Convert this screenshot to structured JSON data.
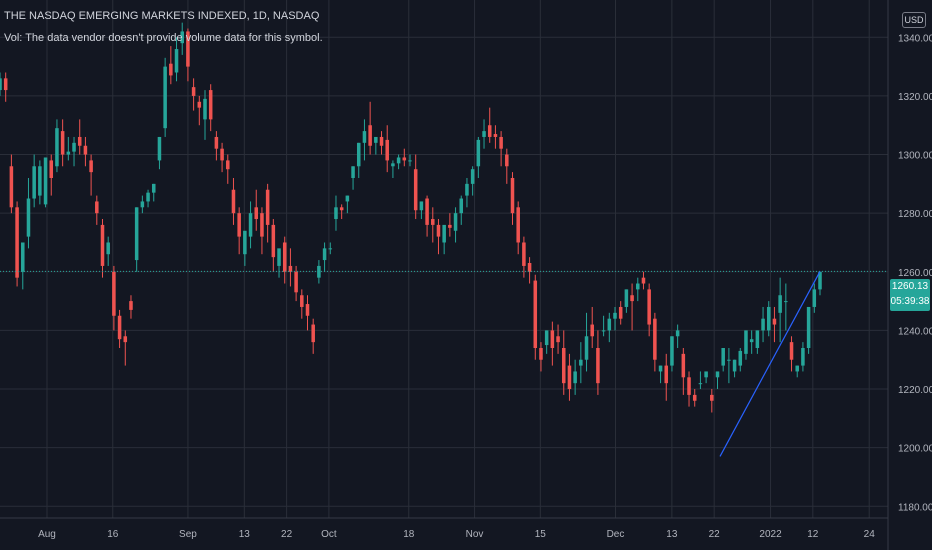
{
  "header": {
    "title": "THE NASDAQ EMERGING MARKETS INDEXED, 1D, NASDAQ",
    "volume_note": "Vol: The data vendor doesn't provide volume data for this symbol."
  },
  "currency_button": "USD",
  "last_price": {
    "value": "1260.13",
    "countdown": "05:39:38"
  },
  "colors": {
    "background": "#131722",
    "up": "#26a69a",
    "down": "#ef5350",
    "grid": "#2a2e39",
    "text": "#b2b5be"
  },
  "chart_data": {
    "type": "candlestick",
    "y_ticks": [
      "1180.00",
      "1200.00",
      "1220.00",
      "1240.00",
      "1260.00",
      "1280.00",
      "1300.00",
      "1320.00",
      "1340.00"
    ],
    "x_ticks": [
      {
        "label": "Aug",
        "date": "2021-08-02"
      },
      {
        "label": "16",
        "date": "2021-08-16"
      },
      {
        "label": "Sep",
        "date": "2021-09-01"
      },
      {
        "label": "13",
        "date": "2021-09-13"
      },
      {
        "label": "22",
        "date": "2021-09-22"
      },
      {
        "label": "Oct",
        "date": "2021-10-01"
      },
      {
        "label": "18",
        "date": "2021-10-18"
      },
      {
        "label": "Nov",
        "date": "2021-11-01"
      },
      {
        "label": "15",
        "date": "2021-11-15"
      },
      {
        "label": "Dec",
        "date": "2021-12-01"
      },
      {
        "label": "13",
        "date": "2021-12-13"
      },
      {
        "label": "22",
        "date": "2021-12-22"
      },
      {
        "label": "2022",
        "date": "2022-01-03"
      },
      {
        "label": "12",
        "date": "2022-01-12"
      },
      {
        "label": "24",
        "date": "2022-01-24"
      }
    ],
    "ylim": [
      1176,
      1350
    ],
    "last_price": 1260.13,
    "candles": [
      [
        1322,
        1328,
        1326,
        1320
      ],
      [
        1326,
        1328,
        1322,
        1318
      ],
      [
        1296,
        1300,
        1282,
        1280
      ],
      [
        1282,
        1284,
        1258,
        1255
      ],
      [
        1260,
        1262,
        1270,
        1254
      ],
      [
        1272,
        1292,
        1285,
        1268
      ],
      [
        1285,
        1300,
        1296,
        1282
      ],
      [
        1286,
        1298,
        1296,
        1283
      ],
      [
        1283,
        1286,
        1299,
        1282
      ],
      [
        1298,
        1300,
        1292,
        1286
      ],
      [
        1296,
        1312,
        1309,
        1294
      ],
      [
        1308,
        1312,
        1300,
        1296
      ],
      [
        1300,
        1306,
        1301,
        1298
      ],
      [
        1301,
        1306,
        1304,
        1296
      ],
      [
        1306,
        1312,
        1303,
        1300
      ],
      [
        1303,
        1306,
        1300,
        1296
      ],
      [
        1298,
        1300,
        1294,
        1286
      ],
      [
        1284,
        1286,
        1280,
        1276
      ],
      [
        1276,
        1278,
        1262,
        1258
      ],
      [
        1266,
        1272,
        1270,
        1262
      ],
      [
        1260,
        1262,
        1245,
        1240
      ],
      [
        1245,
        1247,
        1237,
        1234
      ],
      [
        1238,
        1240,
        1236,
        1228
      ],
      [
        1250,
        1252,
        1247,
        1244
      ],
      [
        1264,
        1282,
        1282,
        1260
      ],
      [
        1282,
        1286,
        1284,
        1280
      ],
      [
        1284,
        1288,
        1287,
        1282
      ],
      [
        1287,
        1290,
        1290,
        1284
      ],
      [
        1298,
        1306,
        1306,
        1295
      ],
      [
        1309,
        1333,
        1330,
        1306
      ],
      [
        1331,
        1337,
        1327,
        1324
      ],
      [
        1328,
        1340,
        1336,
        1325
      ],
      [
        1338,
        1345,
        1342,
        1334
      ],
      [
        1342,
        1343,
        1330,
        1325
      ],
      [
        1323,
        1326,
        1320,
        1315
      ],
      [
        1318,
        1320,
        1316,
        1310
      ],
      [
        1312,
        1322,
        1319,
        1305
      ],
      [
        1322,
        1324,
        1312,
        1308
      ],
      [
        1306,
        1308,
        1302,
        1298
      ],
      [
        1302,
        1304,
        1298,
        1294
      ],
      [
        1298,
        1300,
        1295,
        1290
      ],
      [
        1288,
        1292,
        1280,
        1276
      ],
      [
        1280,
        1282,
        1272,
        1266
      ],
      [
        1266,
        1268,
        1274,
        1262
      ],
      [
        1272,
        1284,
        1280,
        1268
      ],
      [
        1282,
        1288,
        1278,
        1274
      ],
      [
        1280,
        1282,
        1272,
        1266
      ],
      [
        1288,
        1290,
        1276,
        1270
      ],
      [
        1276,
        1278,
        1265,
        1260
      ],
      [
        1262,
        1264,
        1268,
        1258
      ],
      [
        1270,
        1272,
        1260,
        1256
      ],
      [
        1262,
        1268,
        1260,
        1255
      ],
      [
        1260,
        1262,
        1253,
        1250
      ],
      [
        1252,
        1254,
        1248,
        1244
      ],
      [
        1249,
        1252,
        1245,
        1240
      ],
      [
        1242,
        1244,
        1236,
        1232
      ],
      [
        1258,
        1264,
        1262,
        1256
      ],
      [
        1264,
        1270,
        1268,
        1260
      ],
      [
        1268,
        1270,
        1268,
        1266
      ],
      [
        1278,
        1286,
        1282,
        1274
      ],
      [
        1282,
        1283,
        1281,
        1278
      ],
      [
        1284,
        1286,
        1286,
        1280
      ],
      [
        1292,
        1296,
        1296,
        1288
      ],
      [
        1296,
        1304,
        1304,
        1292
      ],
      [
        1304,
        1312,
        1308,
        1298
      ],
      [
        1310,
        1318,
        1303,
        1300
      ],
      [
        1304,
        1306,
        1306,
        1300
      ],
      [
        1306,
        1308,
        1303,
        1300
      ],
      [
        1305,
        1310,
        1298,
        1294
      ],
      [
        1296,
        1298,
        1297,
        1292
      ],
      [
        1297,
        1300,
        1299,
        1295
      ],
      [
        1299,
        1302,
        1298,
        1296
      ],
      [
        1298,
        1300,
        1298,
        1296
      ],
      [
        1295,
        1300,
        1281,
        1278
      ],
      [
        1281,
        1284,
        1284,
        1278
      ],
      [
        1285,
        1286,
        1276,
        1272
      ],
      [
        1278,
        1282,
        1276,
        1270
      ],
      [
        1276,
        1278,
        1272,
        1266
      ],
      [
        1270,
        1272,
        1276,
        1266
      ],
      [
        1276,
        1280,
        1275,
        1272
      ],
      [
        1274,
        1282,
        1280,
        1270
      ],
      [
        1280,
        1286,
        1285,
        1276
      ],
      [
        1286,
        1292,
        1290,
        1282
      ],
      [
        1290,
        1296,
        1295,
        1286
      ],
      [
        1296,
        1306,
        1305,
        1292
      ],
      [
        1306,
        1312,
        1308,
        1302
      ],
      [
        1310,
        1316,
        1306,
        1304
      ],
      [
        1307,
        1310,
        1306,
        1302
      ],
      [
        1306,
        1308,
        1302,
        1296
      ],
      [
        1300,
        1302,
        1296,
        1290
      ],
      [
        1292,
        1294,
        1280,
        1276
      ],
      [
        1282,
        1284,
        1270,
        1266
      ],
      [
        1270,
        1272,
        1262,
        1258
      ],
      [
        1263,
        1265,
        1260,
        1256
      ],
      [
        1257,
        1259,
        1234,
        1230
      ],
      [
        1234,
        1236,
        1230,
        1226
      ],
      [
        1235,
        1240,
        1240,
        1232
      ],
      [
        1240,
        1243,
        1234,
        1228
      ],
      [
        1238,
        1242,
        1236,
        1232
      ],
      [
        1234,
        1240,
        1222,
        1218
      ],
      [
        1228,
        1232,
        1220,
        1216
      ],
      [
        1222,
        1230,
        1226,
        1218
      ],
      [
        1228,
        1236,
        1230,
        1222
      ],
      [
        1230,
        1246,
        1238,
        1226
      ],
      [
        1242,
        1248,
        1238,
        1234
      ],
      [
        1234,
        1240,
        1222,
        1218
      ],
      [
        1240,
        1245,
        1240,
        1238
      ],
      [
        1240,
        1246,
        1244,
        1236
      ],
      [
        1244,
        1248,
        1246,
        1240
      ],
      [
        1248,
        1250,
        1244,
        1242
      ],
      [
        1248,
        1254,
        1254,
        1246
      ],
      [
        1252,
        1256,
        1250,
        1240
      ],
      [
        1254,
        1258,
        1256,
        1250
      ],
      [
        1258,
        1260,
        1256,
        1254
      ],
      [
        1254,
        1256,
        1242,
        1238
      ],
      [
        1244,
        1246,
        1230,
        1226
      ],
      [
        1226,
        1228,
        1228,
        1222
      ],
      [
        1228,
        1232,
        1222,
        1216
      ],
      [
        1228,
        1238,
        1238,
        1226
      ],
      [
        1238,
        1242,
        1240,
        1234
      ],
      [
        1232,
        1234,
        1224,
        1218
      ],
      [
        1224,
        1226,
        1218,
        1214
      ],
      [
        1218,
        1220,
        1216,
        1214
      ],
      [
        1222,
        1226,
        1222,
        1220
      ],
      [
        1224,
        1226,
        1226,
        1222
      ],
      [
        1218,
        1220,
        1216,
        1212
      ],
      [
        1224,
        1226,
        1226,
        1220
      ],
      [
        1228,
        1234,
        1234,
        1226
      ],
      [
        1230,
        1234,
        1230,
        1222
      ],
      [
        1226,
        1230,
        1230,
        1224
      ],
      [
        1228,
        1234,
        1233,
        1226
      ],
      [
        1232,
        1240,
        1240,
        1230
      ],
      [
        1236,
        1240,
        1237,
        1232
      ],
      [
        1234,
        1240,
        1240,
        1232
      ],
      [
        1240,
        1248,
        1244,
        1236
      ],
      [
        1240,
        1250,
        1248,
        1238
      ],
      [
        1244,
        1248,
        1242,
        1236
      ],
      [
        1246,
        1258,
        1252,
        1236
      ],
      [
        1250,
        1256,
        1250,
        1240
      ],
      [
        1236,
        1238,
        1230,
        1226
      ],
      [
        1226,
        1228,
        1228,
        1224
      ],
      [
        1228,
        1236,
        1234,
        1226
      ],
      [
        1234,
        1248,
        1248,
        1232
      ],
      [
        1248,
        1256,
        1254,
        1246
      ],
      [
        1254,
        1260,
        1260,
        1252
      ]
    ]
  }
}
